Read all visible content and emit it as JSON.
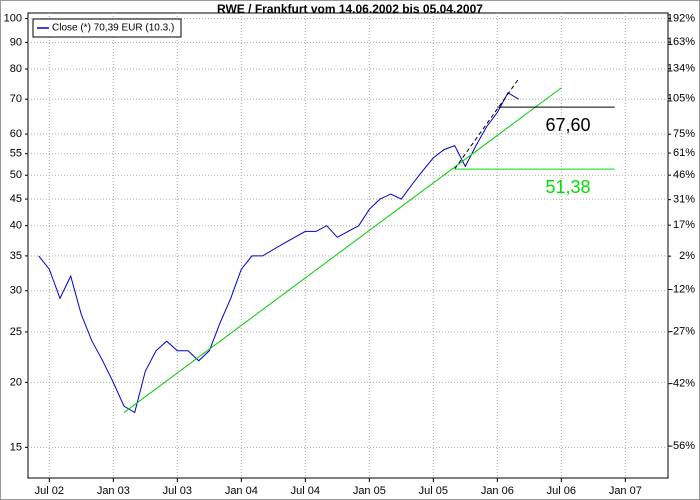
{
  "chart_data": {
    "type": "line",
    "title": "RWE / Frankfurt vom 14.06.2002 bis 05.04.2007",
    "x": [
      "2002-06",
      "2002-07",
      "2002-08",
      "2002-09",
      "2002-10",
      "2002-11",
      "2002-12",
      "2003-01",
      "2003-02",
      "2003-03",
      "2003-04",
      "2003-05",
      "2003-06",
      "2003-07",
      "2003-08",
      "2003-09",
      "2003-10",
      "2003-11",
      "2003-12",
      "2004-01",
      "2004-02",
      "2004-03",
      "2004-04",
      "2004-05",
      "2004-06",
      "2004-07",
      "2004-08",
      "2004-09",
      "2004-10",
      "2004-11",
      "2004-12",
      "2005-01",
      "2005-02",
      "2005-03",
      "2005-04",
      "2005-05",
      "2005-06",
      "2005-07",
      "2005-08",
      "2005-09",
      "2005-10",
      "2005-11",
      "2005-12",
      "2006-01",
      "2006-02",
      "2006-03"
    ],
    "series": [
      {
        "name": "Close (*) 70,39 EUR (10.3.)",
        "color": "#0000cc",
        "values": [
          35,
          33,
          29,
          32,
          27,
          24,
          22,
          20,
          18,
          17.5,
          21,
          23,
          24,
          23,
          23,
          22,
          23,
          26,
          29,
          33,
          35,
          35,
          36,
          37,
          38,
          39,
          39,
          40,
          38,
          39,
          40,
          43,
          45,
          46,
          45,
          48,
          51,
          54,
          56,
          57,
          52,
          57,
          62,
          66,
          72,
          70
        ]
      }
    ],
    "xlim": [
      "2002-05",
      "2007-05"
    ],
    "xticks": [
      {
        "value": "2002-07",
        "label": "Jul 02"
      },
      {
        "value": "2003-01",
        "label": "Jan 03"
      },
      {
        "value": "2003-07",
        "label": "Jul 03"
      },
      {
        "value": "2004-01",
        "label": "Jan 04"
      },
      {
        "value": "2004-07",
        "label": "Jul 04"
      },
      {
        "value": "2005-01",
        "label": "Jan 05"
      },
      {
        "value": "2005-07",
        "label": "Jul 05"
      },
      {
        "value": "2006-01",
        "label": "Jan 06"
      },
      {
        "value": "2006-07",
        "label": "Jul 06"
      },
      {
        "value": "2007-01",
        "label": "Jan 07"
      }
    ],
    "ylim": [
      13.1,
      102.5
    ],
    "yscale": "log",
    "yticks": [
      15,
      20,
      25,
      30,
      35,
      40,
      45,
      50,
      55,
      60,
      70,
      80,
      90,
      100
    ],
    "y2lim": [
      -61.8,
      199.3
    ],
    "y2scale": "log-ratio",
    "y2ticks": [
      {
        "value": 192,
        "label": "192%"
      },
      {
        "value": 163,
        "label": "163%"
      },
      {
        "value": 134,
        "label": "134%"
      },
      {
        "value": 105,
        "label": "105%"
      },
      {
        "value": 75,
        "label": "75%"
      },
      {
        "value": 61,
        "label": "61%"
      },
      {
        "value": 46,
        "label": "46%"
      },
      {
        "value": 31,
        "label": "31%"
      },
      {
        "value": 17,
        "label": "17%"
      },
      {
        "value": 2,
        "label": "2%"
      },
      {
        "value": -12,
        "label": "-12%"
      },
      {
        "value": -27,
        "label": "-27%"
      },
      {
        "value": -42,
        "label": "-42%"
      },
      {
        "value": -56,
        "label": "-56%"
      }
    ],
    "grid": true,
    "legend": "upper left",
    "trendlines": [
      {
        "x": [
          "2003-02",
          "2006-07"
        ],
        "y": [
          17.5,
          73.6
        ],
        "color": "#00cc00",
        "dash": false
      },
      {
        "x": [
          "2005-09",
          "2006-03"
        ],
        "y": [
          51.4,
          76.6
        ],
        "color": "#000000",
        "dash": true
      }
    ],
    "levels": [
      {
        "x": [
          "2006-01",
          "2006-12"
        ],
        "value": 67.6,
        "value_label": "67,60",
        "color": "#000000"
      },
      {
        "x": [
          "2005-09",
          "2006-12"
        ],
        "value": 51.38,
        "value_label": "51,38",
        "color": "#00dd00"
      }
    ]
  }
}
